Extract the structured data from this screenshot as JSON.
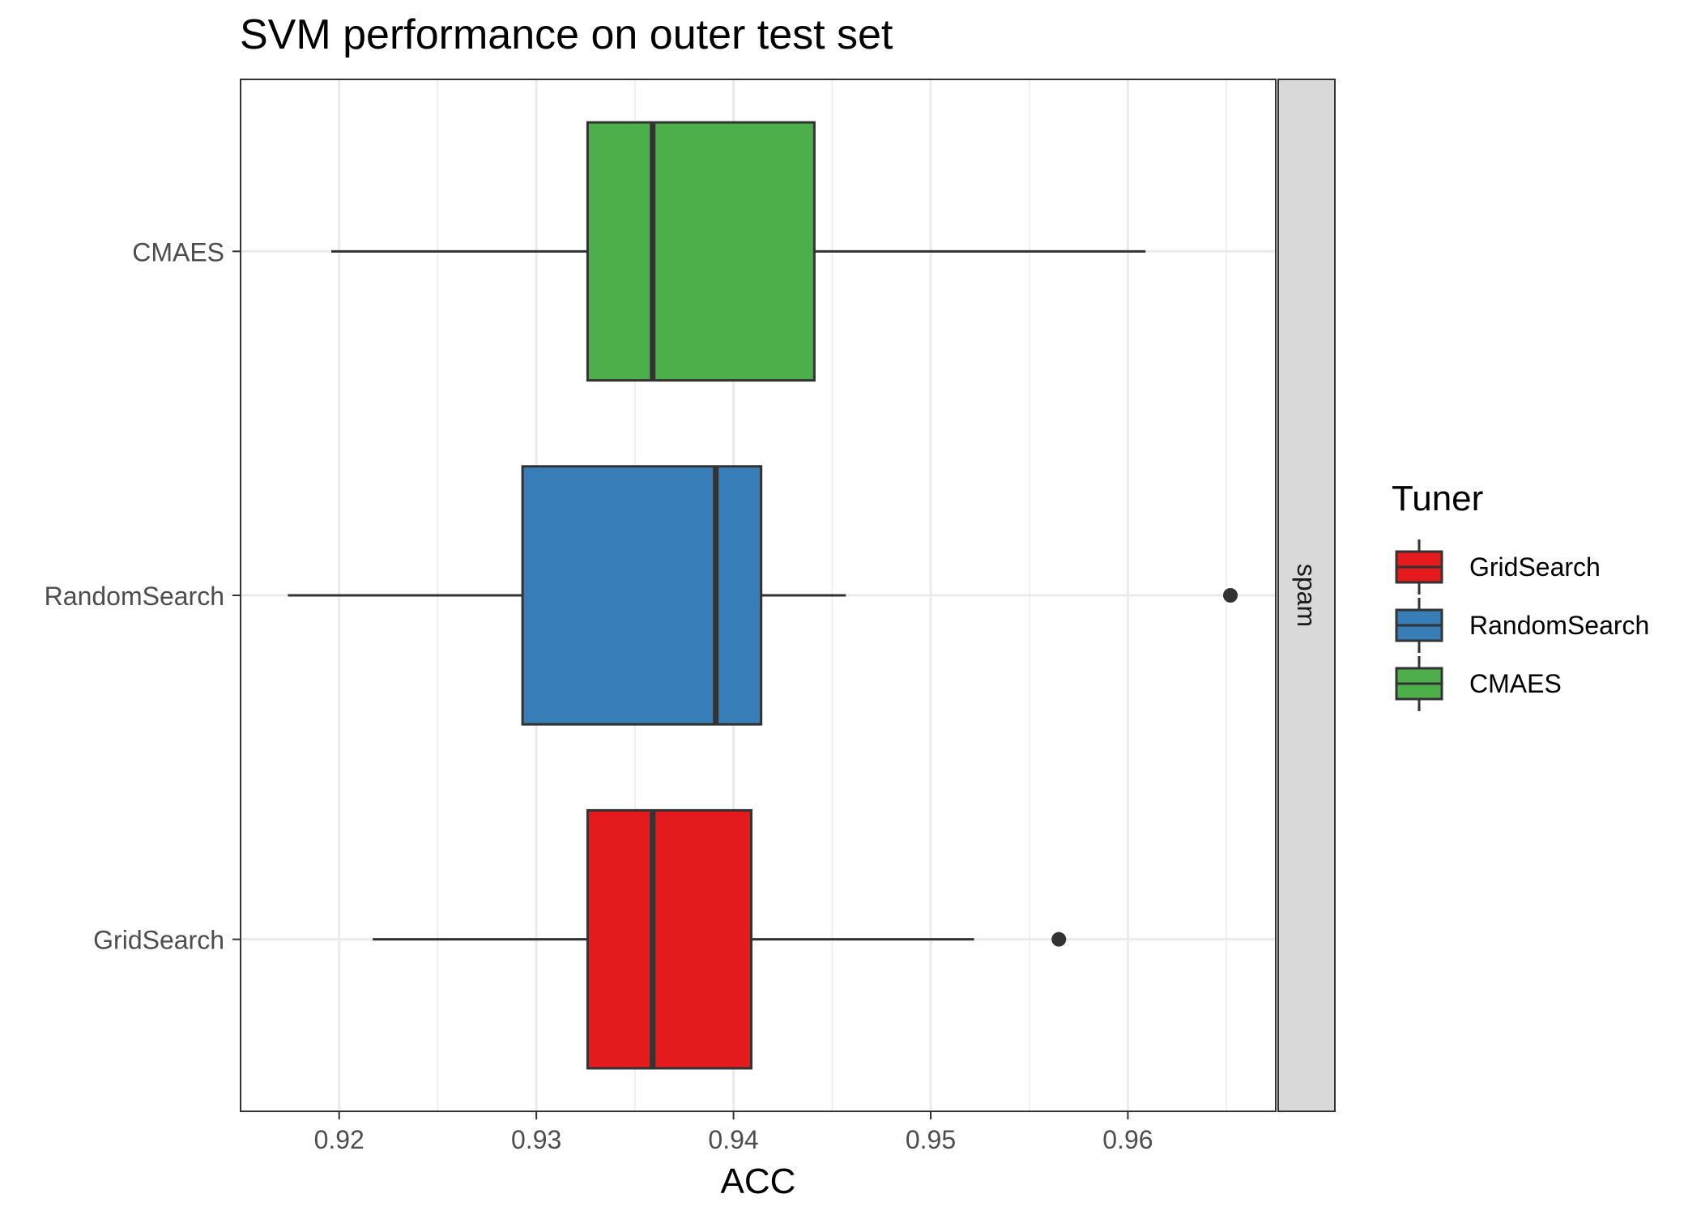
{
  "chart_data": {
    "type": "boxplot",
    "orientation": "horizontal",
    "title": "SVM performance on outer test set",
    "xlabel": "ACC",
    "ylabel": "",
    "xlim": [
      0.915,
      0.9675
    ],
    "x_ticks": [
      0.92,
      0.93,
      0.94,
      0.95,
      0.96
    ],
    "x_tick_labels": [
      "0.92",
      "0.93",
      "0.94",
      "0.95",
      "0.96"
    ],
    "categories": [
      "CMAES",
      "RandomSearch",
      "GridSearch"
    ],
    "facet_label": "spam",
    "grid": true,
    "legend": {
      "title": "Tuner",
      "position": "right",
      "entries": [
        {
          "label": "GridSearch",
          "color": "#E41A1C"
        },
        {
          "label": "RandomSearch",
          "color": "#377EB8"
        },
        {
          "label": "CMAES",
          "color": "#4DAF4A"
        }
      ]
    },
    "series": [
      {
        "name": "CMAES",
        "color": "#4DAF4A",
        "whisker_low": 0.9196,
        "q1": 0.9326,
        "median": 0.9359,
        "q3": 0.9441,
        "whisker_high": 0.9609,
        "outliers": []
      },
      {
        "name": "RandomSearch",
        "color": "#377EB8",
        "whisker_low": 0.9174,
        "q1": 0.9293,
        "median": 0.9391,
        "q3": 0.9414,
        "whisker_high": 0.9457,
        "outliers": [
          0.9652
        ]
      },
      {
        "name": "GridSearch",
        "color": "#E41A1C",
        "whisker_low": 0.9217,
        "q1": 0.9326,
        "median": 0.9359,
        "q3": 0.9409,
        "whisker_high": 0.9522,
        "outliers": [
          0.9565
        ]
      }
    ]
  }
}
